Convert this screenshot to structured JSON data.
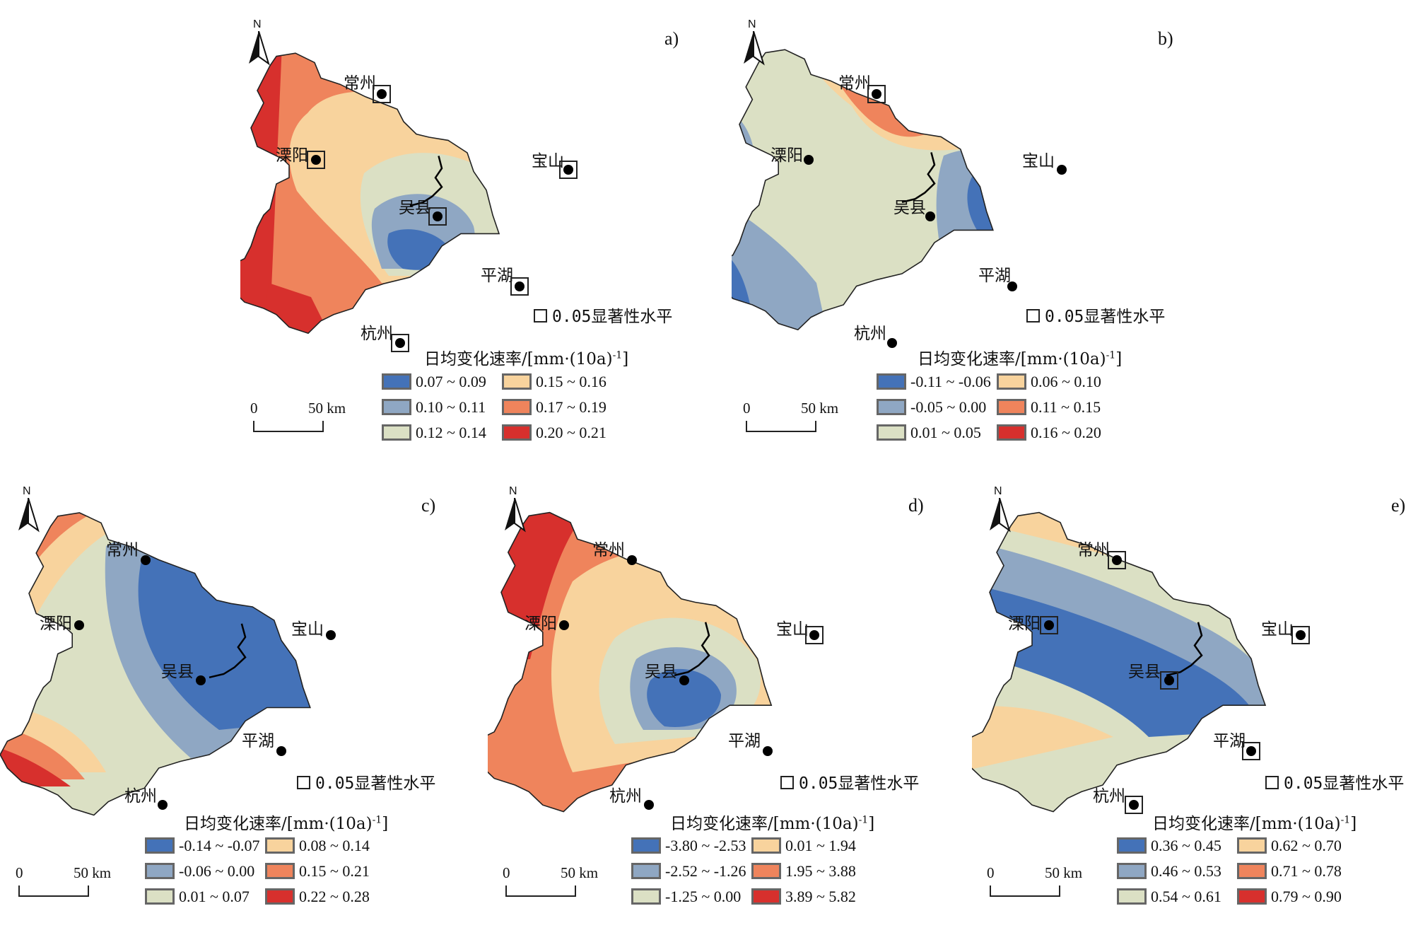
{
  "north_label": "N",
  "significance_label": "0.05显著性水平",
  "legend_title": "日均变化速率/[mm·(10a)",
  "legend_title_sup": "-1",
  "legend_title_end": "]",
  "scale_start": "0",
  "scale_end": "50 km",
  "colors": [
    "#4472b8",
    "#8fa7c3",
    "#dbe0c4",
    "#f8d39d",
    "#ef845c",
    "#d7302d"
  ],
  "panels": [
    {
      "label": "a)",
      "legend": [
        "0.07 ~ 0.09",
        "0.15 ~ 0.16",
        "0.10 ~ 0.11",
        "0.17 ~ 0.19",
        "0.12 ~ 0.14",
        "0.20 ~ 0.21"
      ],
      "cities": {
        "changzhou": "常州",
        "liyang": "溧阳",
        "baoshan": "宝山",
        "wuxian": "吴县",
        "pinghu": "平湖",
        "hangzhou": "杭州"
      }
    },
    {
      "label": "b)",
      "legend": [
        "-0.11 ~ -0.06",
        "0.06 ~ 0.10",
        "-0.05 ~ 0.00",
        "0.11 ~ 0.15",
        "0.01 ~ 0.05",
        "0.16 ~ 0.20"
      ],
      "cities": {
        "changzhou": "常州",
        "liyang": "溧阳",
        "baoshan": "宝山",
        "wuxian": "吴县",
        "pinghu": "平湖",
        "hangzhou": "杭州"
      }
    },
    {
      "label": "c)",
      "legend": [
        "-0.14 ~ -0.07",
        "0.08 ~ 0.14",
        "-0.06 ~ 0.00",
        "0.15 ~ 0.21",
        "0.01 ~ 0.07",
        "0.22 ~ 0.28"
      ],
      "cities": {
        "changzhou": "常州",
        "liyang": "溧阳",
        "baoshan": "宝山",
        "wuxian": "吴县",
        "pinghu": "平湖",
        "hangzhou": "杭州"
      }
    },
    {
      "label": "d)",
      "legend": [
        "-3.80 ~ -2.53",
        "0.01 ~ 1.94",
        "-2.52 ~ -1.26",
        "1.95 ~ 3.88",
        "-1.25 ~ 0.00",
        "3.89 ~ 5.82"
      ],
      "cities": {
        "changzhou": "常州",
        "liyang": "溧阳",
        "baoshan": "宝山",
        "wuxian": "吴县",
        "pinghu": "平湖",
        "hangzhou": "杭州"
      }
    },
    {
      "label": "e)",
      "legend": [
        "0.36 ~ 0.45",
        "0.62 ~ 0.70",
        "0.46 ~ 0.53",
        "0.71 ~ 0.78",
        "0.54 ~ 0.61",
        "0.79 ~ 0.90"
      ],
      "cities": {
        "changzhou": "常州",
        "liyang": "溧阳",
        "baoshan": "宝山",
        "wuxian": "吴县",
        "pinghu": "平湖",
        "hangzhou": "杭州"
      }
    }
  ]
}
